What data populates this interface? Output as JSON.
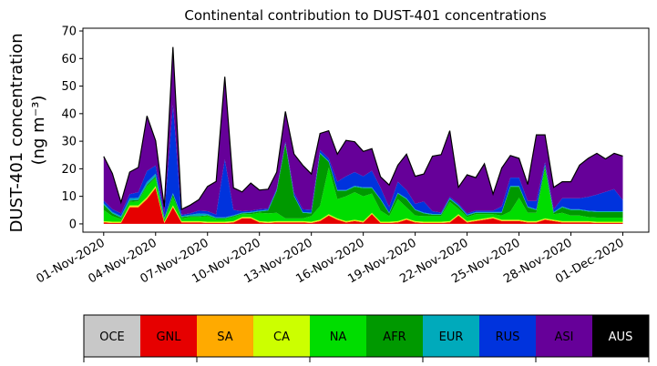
{
  "chart_data": {
    "type": "area",
    "title": "Continental contribution to DUST-401 concentrations",
    "ylabel_line1": "DUST-401 concentration",
    "ylabel_line2": "(ng m⁻³)",
    "xlabel": "",
    "ylim": [
      -3,
      71
    ],
    "yticks": [
      0,
      10,
      20,
      30,
      40,
      50,
      60,
      70
    ],
    "xlim_days": [
      -1.2,
      31.5
    ],
    "x_start_date": "2020-11-01",
    "x_step_days": 0.5,
    "xticks": [
      {
        "label": "01-Nov-2020",
        "day": 0
      },
      {
        "label": "04-Nov-2020",
        "day": 3
      },
      {
        "label": "07-Nov-2020",
        "day": 6
      },
      {
        "label": "10-Nov-2020",
        "day": 9
      },
      {
        "label": "13-Nov-2020",
        "day": 12
      },
      {
        "label": "16-Nov-2020",
        "day": 15
      },
      {
        "label": "19-Nov-2020",
        "day": 18
      },
      {
        "label": "22-Nov-2020",
        "day": 21
      },
      {
        "label": "25-Nov-2020",
        "day": 24
      },
      {
        "label": "28-Nov-2020",
        "day": 27
      },
      {
        "label": "01-Dec-2020",
        "day": 30
      }
    ],
    "grid": false,
    "legend_position": "below",
    "legend_columns": [
      "OCE",
      "GNL",
      "SA",
      "CA",
      "NA",
      "AFR",
      "EUR",
      "RUS",
      "ASI",
      "AUS"
    ],
    "series": [
      {
        "name": "OCE",
        "color": "#c8c8c8",
        "text_color": "#000000",
        "values": [
          0,
          0,
          0,
          0,
          0,
          0,
          0,
          0,
          0,
          0,
          0,
          0,
          0,
          0,
          0,
          0,
          0,
          0,
          0,
          0,
          0,
          0,
          0,
          0,
          0,
          0,
          0,
          0,
          0,
          0,
          0,
          0,
          0,
          0,
          0,
          0,
          0,
          0,
          0,
          0,
          0,
          0,
          0,
          0,
          0,
          0,
          0,
          0,
          0,
          0,
          0,
          0,
          0,
          0,
          0,
          0,
          0,
          0,
          0,
          0,
          0
        ]
      },
      {
        "name": "GNL",
        "color": "#e60000",
        "text_color": "#000000",
        "values": [
          0.5,
          0.3,
          0.3,
          6,
          6,
          9,
          13,
          0.3,
          6,
          0.5,
          0.5,
          0.5,
          0.3,
          0.3,
          0.3,
          0.5,
          2,
          2,
          0.5,
          0.3,
          0.5,
          0.5,
          0.5,
          0.5,
          0.3,
          1,
          3,
          1.5,
          0.5,
          1,
          0.5,
          3.5,
          0.3,
          0.3,
          0.5,
          1.5,
          0.5,
          0.3,
          0.3,
          0.3,
          0.5,
          3,
          0.5,
          1,
          1.5,
          2,
          1,
          1,
          1,
          0.5,
          0.5,
          1.5,
          1,
          0.5,
          0.5,
          0.5,
          0.5,
          0.3,
          0.3,
          0.3,
          0.3
        ]
      },
      {
        "name": "SA",
        "color": "#ffaa00",
        "text_color": "#000000",
        "values": [
          0.2,
          0.2,
          0.2,
          0.3,
          0.3,
          0.3,
          0.3,
          0.2,
          0.3,
          0.2,
          0.2,
          0.2,
          0.2,
          0.2,
          0.2,
          0.2,
          0.2,
          0.2,
          0.2,
          0.2,
          0.2,
          0.2,
          0.2,
          0.2,
          0.2,
          0.2,
          0.2,
          0.2,
          0.2,
          0.2,
          0.2,
          0.2,
          0.2,
          0.2,
          0.2,
          0.2,
          0.2,
          0.2,
          0.2,
          0.2,
          0.2,
          0.2,
          0.2,
          0.2,
          0.2,
          0.2,
          0.2,
          0.2,
          0.2,
          0.2,
          0.2,
          0.2,
          0.2,
          0.2,
          0.2,
          0.2,
          0.2,
          0.2,
          0.2,
          0.2,
          0.2
        ]
      },
      {
        "name": "CA",
        "color": "#ccff00",
        "text_color": "#000000",
        "values": [
          0.3,
          0.3,
          0.3,
          0.4,
          0.4,
          0.4,
          0.4,
          0.3,
          0.4,
          0.3,
          0.3,
          0.3,
          0.3,
          0.3,
          0.3,
          0.3,
          0.3,
          0.3,
          0.3,
          0.3,
          0.3,
          0.3,
          0.3,
          0.3,
          0.3,
          0.3,
          0.3,
          0.3,
          0.3,
          0.3,
          0.3,
          0.3,
          0.3,
          0.3,
          0.3,
          0.3,
          0.3,
          0.3,
          0.3,
          0.3,
          0.3,
          0.3,
          0.3,
          0.3,
          0.3,
          0.3,
          0.3,
          0.3,
          0.3,
          0.3,
          0.3,
          0.3,
          0.3,
          0.3,
          0.3,
          0.3,
          0.3,
          0.3,
          0.3,
          0.3,
          0.3
        ]
      },
      {
        "name": "NA",
        "color": "#00dd00",
        "text_color": "#000000",
        "values": [
          4,
          2,
          1,
          1.3,
          1.5,
          4,
          3,
          0.8,
          3,
          1,
          1.5,
          1.5,
          2,
          1,
          1,
          1.5,
          1,
          1,
          3,
          3,
          3,
          1,
          1,
          1,
          2,
          5,
          17,
          7,
          9,
          10,
          9,
          7,
          4,
          2,
          8,
          4,
          2,
          2,
          2,
          2,
          7,
          2,
          1.5,
          2,
          1.5,
          1,
          1.5,
          3,
          8,
          3,
          3,
          18,
          2,
          3,
          2,
          2,
          1.5,
          1.5,
          1.5,
          1.5,
          1.5
        ]
      },
      {
        "name": "AFR",
        "color": "#009900",
        "text_color": "#000000",
        "values": [
          2,
          1,
          0.5,
          0.5,
          0.5,
          0.5,
          0.5,
          0.3,
          1,
          0.5,
          0.3,
          0.3,
          0.3,
          0.3,
          0.3,
          0.3,
          0.3,
          0.5,
          0.5,
          1,
          8,
          27,
          8,
          2,
          1,
          19,
          2,
          3,
          2,
          2,
          3,
          2,
          4,
          1,
          2,
          3,
          2,
          1,
          0.5,
          0.5,
          1,
          1,
          0.5,
          0.5,
          0.5,
          0.5,
          1,
          9,
          4,
          2,
          1,
          1,
          0.5,
          2,
          2,
          2,
          2,
          2,
          2,
          2,
          2
        ]
      },
      {
        "name": "EUR",
        "color": "#00aabb",
        "text_color": "#000000",
        "values": [
          0.5,
          0.5,
          0.5,
          0.8,
          0.8,
          1,
          1,
          0.3,
          0.5,
          0.3,
          0.5,
          1,
          0.5,
          0.3,
          0.3,
          0.3,
          0.3,
          0.3,
          0.3,
          0.3,
          0.3,
          0.3,
          0.3,
          0.3,
          0.3,
          0.3,
          0.3,
          0.3,
          0.3,
          0.3,
          0.3,
          0.3,
          0.3,
          0.3,
          0.3,
          0.3,
          0.3,
          0.3,
          0.3,
          0.3,
          0.3,
          0.3,
          0.3,
          0.3,
          0.3,
          0.3,
          0.3,
          0.3,
          0.3,
          0.3,
          0.3,
          0.3,
          0.3,
          0.3,
          0.3,
          0.3,
          0.3,
          0.3,
          0.3,
          0.3,
          0.3
        ]
      },
      {
        "name": "RUS",
        "color": "#0033dd",
        "text_color": "#000000",
        "values": [
          1,
          1,
          1,
          1.5,
          2,
          4,
          3,
          1,
          32,
          0.5,
          0.5,
          1,
          1,
          1,
          21,
          2,
          0.5,
          0.5,
          0.5,
          0.5,
          0.5,
          0.5,
          1,
          1,
          1,
          1,
          1,
          3,
          5,
          5,
          4,
          6,
          4,
          2,
          4,
          3,
          2,
          4,
          1,
          0.5,
          0.5,
          0.5,
          0.5,
          0.5,
          0.5,
          0.5,
          2,
          3,
          3,
          2,
          3,
          1,
          1,
          3,
          4,
          4,
          5,
          6,
          7,
          8,
          4
        ]
      },
      {
        "name": "ASI",
        "color": "#660099",
        "text_color": "#000000",
        "values": [
          16,
          13,
          4,
          8,
          9,
          20,
          9,
          3,
          21,
          2,
          3,
          4,
          9,
          12,
          30,
          8,
          7,
          10,
          7,
          7,
          6,
          11,
          14,
          16,
          13,
          6,
          10,
          10,
          13,
          11,
          9,
          8,
          4,
          8,
          6,
          13,
          10,
          10,
          20,
          21,
          24,
          6,
          14,
          12,
          17,
          6,
          14,
          8,
          7,
          6,
          24,
          10,
          8,
          6,
          6,
          12,
          14,
          15,
          12,
          13,
          16
        ]
      },
      {
        "name": "AUS",
        "color": "#000000",
        "text_color": "#ffffff",
        "values": [
          0,
          0,
          0,
          0,
          0,
          0,
          0,
          0,
          0,
          0,
          0,
          0,
          0,
          0,
          0,
          0,
          0,
          0,
          0,
          0,
          0,
          0,
          0,
          0,
          0,
          0,
          0,
          0,
          0,
          0,
          0,
          0,
          0,
          0,
          0,
          0,
          0,
          0,
          0,
          0,
          0,
          0,
          0,
          0,
          0,
          0,
          0,
          0,
          0,
          0,
          0,
          0,
          0,
          0,
          0,
          0,
          0,
          0,
          0,
          0,
          0
        ]
      }
    ]
  }
}
